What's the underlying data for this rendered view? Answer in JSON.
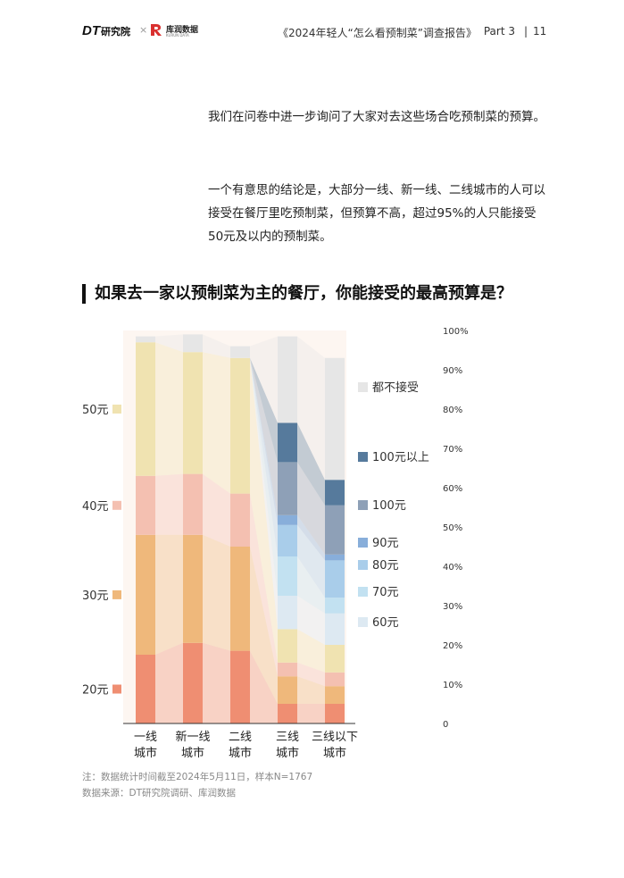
{
  "header": {
    "logo_dt": "DT",
    "logo_dt_sub": "研究院",
    "logo_ku": "库润数据",
    "logo_ku_sub": "KURUN DATA",
    "cross": "×",
    "report_title": "《2024年轻人“怎么看预制菜”调查报告》",
    "part": "Part 3",
    "separator": "|",
    "page_number": "11"
  },
  "intro": {
    "paragraph1": "我们在问卷中进一步询问了大家对去这些场合吃预制菜的预算。",
    "paragraph2": "一个有意思的结论是，大部分一线、新一线、二线城市的人可以接受在餐厅里吃预制菜，但预算不高，超过95%的人只能接受50元及以内的预制菜。"
  },
  "chart_title": "如果去一家以预制菜为主的餐厅，你能接受的最高预算是？",
  "chart_data": {
    "type": "bar",
    "stacked": true,
    "normalized": true,
    "categories": [
      [
        "一线",
        "城市"
      ],
      [
        "新一线",
        "城市"
      ],
      [
        "二线",
        "城市"
      ],
      [
        "三线",
        "城市"
      ],
      [
        "三线以下",
        "城市"
      ]
    ],
    "ylim": [
      0,
      100
    ],
    "yticks": [
      "0",
      "10%",
      "20%",
      "30%",
      "40%",
      "50%",
      "60%",
      "70%",
      "80%",
      "90%",
      "100%"
    ],
    "grid": false,
    "series": [
      {
        "name": "20元",
        "color": "#EF8E72",
        "values": [
          17.5,
          20.5,
          18.5,
          5,
          5
        ]
      },
      {
        "name": "30元",
        "color": "#EFB87B",
        "values": [
          30.5,
          27.5,
          26.5,
          7,
          4.5
        ]
      },
      {
        "name": "40元",
        "color": "#F4C0B1",
        "values": [
          15,
          15.5,
          13.5,
          3.5,
          3.5
        ]
      },
      {
        "name": "50元",
        "color": "#F0E3B1",
        "values": [
          34,
          31,
          34.5,
          8.5,
          7
        ]
      },
      {
        "name": "60元",
        "color": "#DDE9F2",
        "values": [
          0,
          0,
          0,
          8.5,
          8
        ]
      },
      {
        "name": "70元",
        "color": "#C2E1F1",
        "values": [
          0,
          0,
          0,
          10,
          4
        ]
      },
      {
        "name": "80元",
        "color": "#A9CDEA",
        "values": [
          0,
          0,
          0,
          8,
          9.5
        ]
      },
      {
        "name": "90元",
        "color": "#88AEDA",
        "values": [
          0,
          0,
          0,
          2.5,
          1.5
        ]
      },
      {
        "name": "100元",
        "color": "#8EA0B7",
        "values": [
          0,
          0,
          0,
          13.5,
          12.5
        ]
      },
      {
        "name": "100元以上",
        "color": "#567A9C",
        "values": [
          0,
          0,
          0,
          10,
          6.5
        ]
      },
      {
        "name": "都不接受",
        "color": "#E6E6E6",
        "values": [
          1.5,
          4.5,
          3.0,
          22,
          31
        ]
      }
    ],
    "legend_left": [
      "50元",
      "40元",
      "30元",
      "20元"
    ],
    "legend_right": [
      "都不接受",
      "100元以上",
      "100元",
      "90元",
      "80元",
      "70元",
      "60元"
    ],
    "legend_placement": "left and right"
  },
  "notes": {
    "note1": "注：数据统计时间截至2024年5月11日，样本N=1767",
    "note2": "数据来源：DT研究院调研、库润数据"
  }
}
